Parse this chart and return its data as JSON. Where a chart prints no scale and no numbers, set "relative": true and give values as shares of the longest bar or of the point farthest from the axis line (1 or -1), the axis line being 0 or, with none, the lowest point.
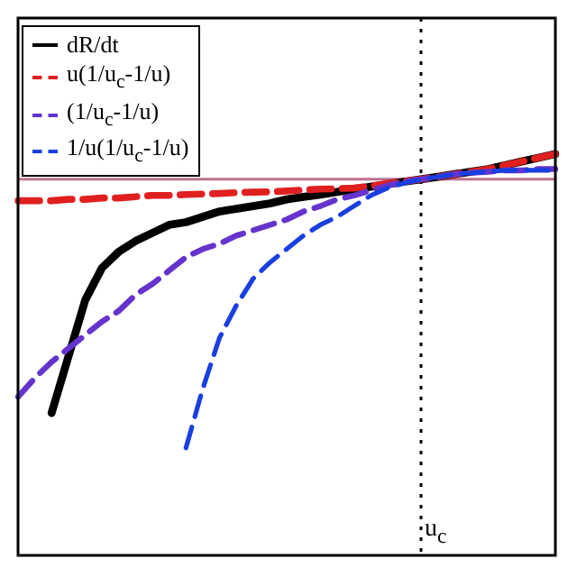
{
  "chart_data": {
    "type": "line",
    "relative": true,
    "legend": "top left",
    "grid": false,
    "marker": "none",
    "categories": [
      null,
      null,
      null,
      null,
      null,
      null,
      null,
      null,
      null,
      null,
      null,
      null,
      null,
      null,
      null,
      null,
      null,
      null,
      null,
      null,
      null,
      null,
      null,
      null,
      null,
      null,
      null,
      null,
      null,
      null,
      null,
      null,
      null
    ],
    "series": [
      {
        "name": "dR/dt",
        "color": "#000000",
        "line_style": "solid",
        "values": [
          null,
          null,
          -0.87,
          -0.66,
          -0.45,
          -0.33,
          -0.27,
          -0.23,
          -0.2,
          -0.17,
          -0.16,
          -0.14,
          -0.12,
          -0.11,
          -0.1,
          -0.09,
          -0.075,
          -0.066,
          -0.057,
          -0.047,
          -0.038,
          -0.028,
          -0.019,
          -0.009,
          0,
          0.009,
          0.019,
          0.028,
          0.038,
          0.052,
          0.066,
          0.08,
          0.094
        ]
      },
      {
        "name": "u(1/u$_{c}$-1/u)",
        "color": "#e02020",
        "line_style": "dashed",
        "values": [
          -0.08,
          -0.08,
          -0.08,
          -0.075,
          -0.075,
          -0.07,
          -0.07,
          -0.065,
          -0.06,
          -0.06,
          -0.057,
          -0.055,
          -0.053,
          -0.05,
          -0.048,
          -0.047,
          -0.044,
          -0.04,
          -0.037,
          -0.035,
          -0.033,
          -0.025,
          -0.017,
          -0.008,
          0,
          0.009,
          0.019,
          0.028,
          0.038,
          0.052,
          0.066,
          0.08,
          0.094
        ]
      },
      {
        "name": "(1/u$_{c}$-1/u)",
        "color": "#6633cc",
        "line_style": "dashed",
        "values": [
          -0.81,
          -0.74,
          -0.68,
          -0.63,
          -0.58,
          -0.53,
          -0.49,
          -0.43,
          -0.39,
          -0.34,
          -0.29,
          -0.26,
          -0.24,
          -0.21,
          -0.19,
          -0.17,
          -0.15,
          -0.12,
          -0.1,
          -0.075,
          -0.061,
          -0.042,
          -0.024,
          -0.009,
          0,
          0.009,
          0.019,
          0.024,
          0.028,
          0.033,
          0.033,
          0.038,
          0.038
        ]
      },
      {
        "name": "1/u(1/u$_{c}$-1/u)",
        "color": "#1a3fe0",
        "line_style": "dashed",
        "values": [
          null,
          null,
          null,
          null,
          null,
          null,
          null,
          null,
          null,
          null,
          -1,
          -0.78,
          -0.59,
          -0.47,
          -0.37,
          -0.31,
          -0.26,
          -0.21,
          -0.17,
          -0.14,
          -0.1,
          -0.061,
          -0.033,
          -0.014,
          0,
          0.009,
          0.019,
          0.024,
          0.028,
          0.033,
          0.033,
          0.033,
          0.033
        ]
      }
    ],
    "ref_lines": [
      {
        "axis": "y",
        "value": 0,
        "color": "#c07090",
        "line_style": "solid"
      },
      {
        "axis": "x",
        "value": "u$_{c}$",
        "color": "#000000",
        "line_style": "dotted"
      }
    ]
  }
}
